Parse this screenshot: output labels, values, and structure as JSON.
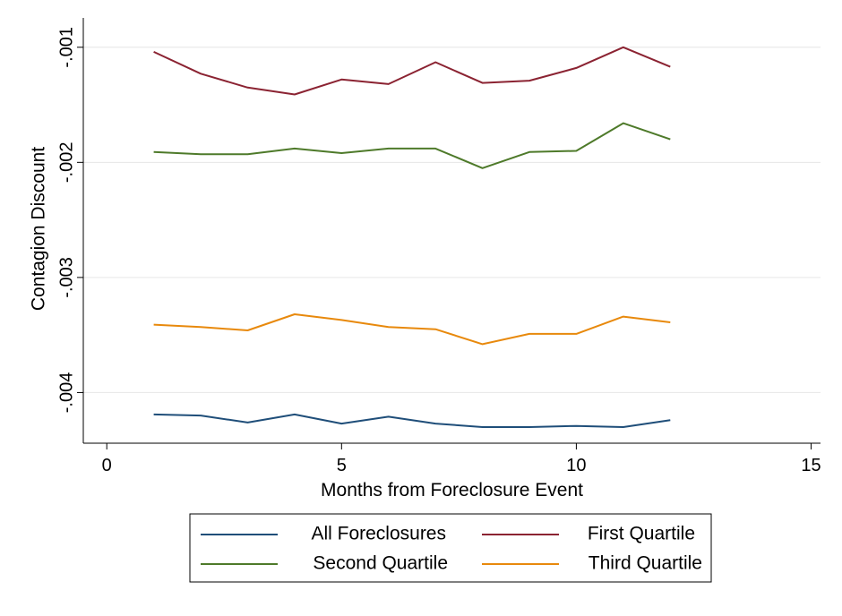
{
  "chart_data": {
    "type": "line",
    "title": "",
    "xlabel": "Months from Foreclosure Event",
    "ylabel": "Contagion Discount",
    "xlim": [
      -0.5,
      15.2
    ],
    "ylim": [
      -0.00444,
      -0.000745
    ],
    "xticks": [
      0,
      5,
      10,
      15
    ],
    "xtick_labels": [
      "0",
      "5",
      "10",
      "15"
    ],
    "yticks": [
      -0.004,
      -0.003,
      -0.002,
      -0.001
    ],
    "ytick_labels": [
      "-.004",
      "-.003",
      "-.002",
      "-.001"
    ],
    "grid": true,
    "legend_position": "bottom",
    "x": [
      1,
      2,
      3,
      4,
      5,
      6,
      7,
      8,
      9,
      10,
      11,
      12
    ],
    "series": [
      {
        "name": "All Foreclosures",
        "color": "#1f4e79",
        "values": [
          -0.00419,
          -0.0042,
          -0.00426,
          -0.00419,
          -0.00427,
          -0.00421,
          -0.00427,
          -0.0043,
          -0.0043,
          -0.00429,
          -0.0043,
          -0.00424
        ]
      },
      {
        "name": "First Quartile",
        "color": "#8b2332",
        "values": [
          -0.00104,
          -0.00123,
          -0.00135,
          -0.00141,
          -0.00128,
          -0.00132,
          -0.00113,
          -0.00131,
          -0.00129,
          -0.00118,
          -0.001,
          -0.00117
        ]
      },
      {
        "name": "Second Quartile",
        "color": "#4e7a2a",
        "values": [
          -0.00191,
          -0.00193,
          -0.00193,
          -0.00188,
          -0.00192,
          -0.00188,
          -0.00188,
          -0.00205,
          -0.00191,
          -0.0019,
          -0.00166,
          -0.0018
        ]
      },
      {
        "name": "Third Quartile",
        "color": "#e8890c",
        "values": [
          -0.00341,
          -0.00343,
          -0.00346,
          -0.00332,
          -0.00337,
          -0.00343,
          -0.00345,
          -0.00358,
          -0.00349,
          -0.00349,
          -0.00334,
          -0.00339
        ]
      }
    ]
  }
}
